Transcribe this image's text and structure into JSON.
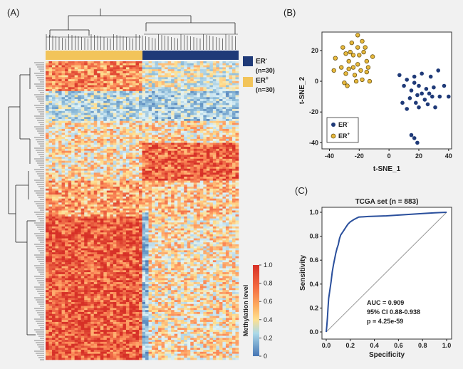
{
  "panels": {
    "a_label": "(A)",
    "b_label": "(B)",
    "c_label": "(C)"
  },
  "legend_er": [
    {
      "label": "ER",
      "superscript": "-",
      "n": "(n=30)",
      "color": "#1f3a78"
    },
    {
      "label": "ER",
      "superscript": "+",
      "n": "(n=30)",
      "color": "#f2c45a"
    }
  ],
  "colorbar": {
    "label": "Methylation level",
    "ticks": [
      "1.0",
      "0.8",
      "0.6",
      "0.4",
      "0.2",
      "0"
    ]
  },
  "colors": {
    "heat_high": "#d73027",
    "heat_mid": "#fee090",
    "heat_low": "#4575b4",
    "er_neg": "#1f3a78",
    "er_pos": "#e8b93c",
    "roc": "#2a4f9c",
    "diag": "#999999"
  },
  "chart_data": [
    {
      "type": "heatmap",
      "panel": "A",
      "column_groups": [
        {
          "name": "ER+",
          "n": 30
        },
        {
          "name": "ER-",
          "n": 30
        }
      ],
      "value_range": [
        0,
        1
      ],
      "dendrogram_top": true,
      "dendrogram_left": true
    },
    {
      "type": "scatter",
      "panel": "B",
      "xlabel": "t-SNE_1",
      "ylabel": "t-SNE_2",
      "xlim": [
        -45,
        42
      ],
      "ylim": [
        -44,
        32
      ],
      "xticks": [
        "-40",
        "-20",
        "0",
        "20",
        "40"
      ],
      "yticks": [
        "20",
        "0",
        "-20",
        "-40"
      ],
      "legend_position": "bottom-left",
      "series": [
        {
          "name": "ER-",
          "points": [
            [
              7,
              4
            ],
            [
              12,
              1
            ],
            [
              17,
              3
            ],
            [
              22,
              5
            ],
            [
              28,
              3
            ],
            [
              33,
              7
            ],
            [
              10,
              -3
            ],
            [
              15,
              -6
            ],
            [
              20,
              -3
            ],
            [
              25,
              -5
            ],
            [
              30,
              -4
            ],
            [
              37,
              -3
            ],
            [
              14,
              -11
            ],
            [
              19,
              -9
            ],
            [
              24,
              -12
            ],
            [
              29,
              -10
            ],
            [
              34,
              -10
            ],
            [
              9,
              -14
            ],
            [
              20,
              -17
            ],
            [
              26,
              -15
            ],
            [
              31,
              -17
            ],
            [
              17,
              -1
            ],
            [
              22,
              -8
            ],
            [
              27,
              -8
            ],
            [
              18,
              -14
            ],
            [
              40,
              -10
            ],
            [
              15,
              -35
            ],
            [
              17,
              -37
            ],
            [
              19,
              -40
            ],
            [
              12,
              -18
            ]
          ]
        },
        {
          "name": "ER+",
          "points": [
            [
              -37,
              7
            ],
            [
              -36,
              15
            ],
            [
              -31,
              22
            ],
            [
              -29,
              5
            ],
            [
              -27,
              13
            ],
            [
              -24,
              17
            ],
            [
              -21,
              11
            ],
            [
              -19,
              7
            ],
            [
              -17,
              19
            ],
            [
              -15,
              13
            ],
            [
              -13,
              0
            ],
            [
              -22,
              0
            ],
            [
              -28,
              -3
            ],
            [
              -32,
              9
            ],
            [
              -25,
              25
            ],
            [
              -21,
              30
            ],
            [
              -18,
              26
            ],
            [
              -11,
              16
            ],
            [
              -15,
              6
            ],
            [
              -24,
              9
            ],
            [
              -26,
              19
            ],
            [
              -20,
              17
            ],
            [
              -18,
              1
            ],
            [
              -30,
              -1
            ],
            [
              -23,
              4
            ],
            [
              -16,
              22
            ],
            [
              -14,
              9
            ],
            [
              -27,
              8
            ],
            [
              -21,
              22
            ],
            [
              -29,
              18
            ]
          ]
        }
      ]
    },
    {
      "type": "line",
      "panel": "C",
      "title": "TCGA set (n = 883)",
      "xlabel": "Specificity",
      "ylabel": "Sensitivity",
      "xlim": [
        0,
        1
      ],
      "ylim": [
        0,
        1
      ],
      "xticks": [
        "0.0",
        "0.2",
        "0.4",
        "0.6",
        "0.8",
        "1.0"
      ],
      "yticks": [
        "1.0",
        "0.8",
        "0.6",
        "0.4",
        "0.2",
        "0.0"
      ],
      "annotations": [
        "AUC = 0.909",
        "95% CI 0.88-0.938",
        "p = 4.25e-59"
      ],
      "series": [
        {
          "points": [
            [
              0,
              0
            ],
            [
              0.005,
              0.05
            ],
            [
              0.01,
              0.12
            ],
            [
              0.015,
              0.2
            ],
            [
              0.02,
              0.28
            ],
            [
              0.03,
              0.35
            ],
            [
              0.04,
              0.42
            ],
            [
              0.05,
              0.5
            ],
            [
              0.06,
              0.56
            ],
            [
              0.07,
              0.61
            ],
            [
              0.08,
              0.66
            ],
            [
              0.09,
              0.7
            ],
            [
              0.1,
              0.73
            ],
            [
              0.11,
              0.78
            ],
            [
              0.12,
              0.81
            ],
            [
              0.14,
              0.84
            ],
            [
              0.16,
              0.87
            ],
            [
              0.18,
              0.9
            ],
            [
              0.2,
              0.92
            ],
            [
              0.23,
              0.94
            ],
            [
              0.27,
              0.96
            ],
            [
              0.35,
              0.965
            ],
            [
              0.5,
              0.97
            ],
            [
              0.65,
              0.98
            ],
            [
              0.8,
              0.99
            ],
            [
              0.9,
              0.995
            ],
            [
              1,
              1
            ]
          ]
        },
        {
          "name": "",
          "points": [
            [
              0,
              0
            ],
            [
              1,
              1
            ]
          ]
        }
      ]
    }
  ]
}
